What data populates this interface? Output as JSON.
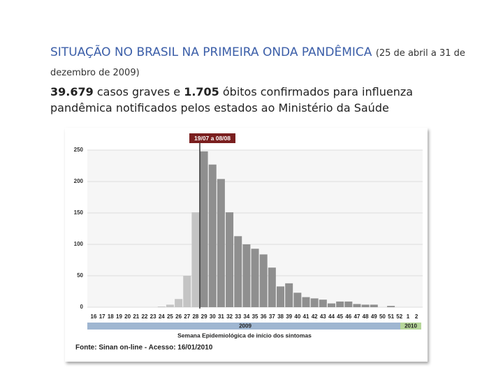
{
  "slide": {
    "title": "SITUAÇÃO NO BRASIL NA PRIMEIRA ONDA PANDÊMICA",
    "title_note": "(25 de abril a 31 de dezembro de 2009)",
    "body": {
      "cases": "39.679",
      "text1": " casos graves e ",
      "deaths": "1.705",
      "text2": " óbitos confirmados para influenza pandêmica notificados pelos estados ao Ministério da Saúde"
    }
  },
  "chart_data": {
    "type": "bar",
    "annotation": "19/07 a 08/08",
    "x_label": "Semana Epidemiológica de início dos sintomas",
    "source": "Fonte: Sinan on-line - Acesso: 16/01/2010",
    "year_bands": [
      "2009",
      "2010"
    ],
    "categories": [
      "16",
      "17",
      "18",
      "19",
      "20",
      "21",
      "22",
      "23",
      "24",
      "25",
      "26",
      "27",
      "28",
      "29",
      "30",
      "31",
      "32",
      "33",
      "34",
      "35",
      "36",
      "37",
      "38",
      "39",
      "40",
      "41",
      "42",
      "43",
      "44",
      "45",
      "46",
      "47",
      "48",
      "49",
      "50",
      "51",
      "52",
      "1",
      "2"
    ],
    "values": [
      0,
      0,
      0,
      0,
      0,
      0,
      0,
      0,
      1,
      4,
      13,
      50,
      151,
      248,
      227,
      204,
      151,
      113,
      100,
      93,
      84,
      63,
      33,
      38,
      23,
      16,
      14,
      12,
      6,
      9,
      9,
      5,
      4,
      4,
      0,
      2,
      0,
      0,
      0
    ],
    "colors": [
      "#c4c4c4",
      "#c4c4c4",
      "#c4c4c4",
      "#c4c4c4",
      "#c4c4c4",
      "#c4c4c4",
      "#c4c4c4",
      "#c4c4c4",
      "#c4c4c4",
      "#c4c4c4",
      "#c4c4c4",
      "#c4c4c4",
      "#c4c4c4",
      "#8f8f8f",
      "#8f8f8f",
      "#8f8f8f",
      "#8f8f8f",
      "#8f8f8f",
      "#8f8f8f",
      "#8f8f8f",
      "#8f8f8f",
      "#8f8f8f",
      "#8f8f8f",
      "#8f8f8f",
      "#8f8f8f",
      "#8f8f8f",
      "#8f8f8f",
      "#8f8f8f",
      "#8f8f8f",
      "#8f8f8f",
      "#8f8f8f",
      "#8f8f8f",
      "#8f8f8f",
      "#8f8f8f",
      "#8f8f8f",
      "#8f8f8f",
      "#8f8f8f",
      "#8f8f8f",
      "#8f8f8f"
    ],
    "ylim": [
      0,
      250
    ],
    "yticks": [
      0,
      50,
      100,
      150,
      200,
      250
    ],
    "grid": true
  }
}
